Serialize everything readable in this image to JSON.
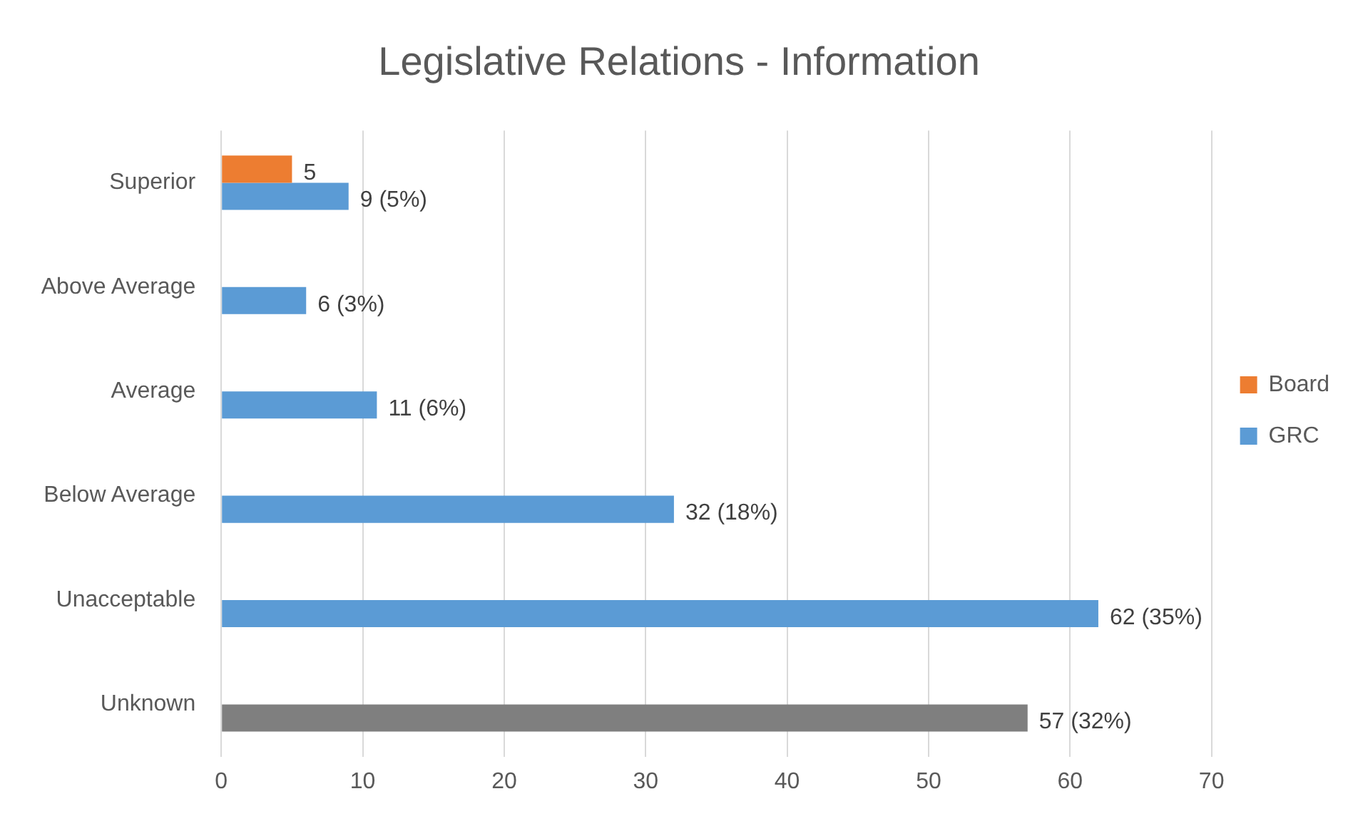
{
  "chart_data": {
    "type": "bar",
    "title": "Legislative Relations - Information",
    "orientation": "horizontal",
    "categories": [
      "Superior",
      "Above Average",
      "Average",
      "Below Average",
      "Unacceptable",
      "Unknown"
    ],
    "series": [
      {
        "name": "Board",
        "color": "#ed7d31",
        "values": [
          5,
          null,
          null,
          null,
          null,
          null
        ],
        "value_labels": [
          "5",
          null,
          null,
          null,
          null,
          null
        ]
      },
      {
        "name": "GRC",
        "color": "#5b9bd5",
        "colors": [
          "#5b9bd5",
          "#5b9bd5",
          "#5b9bd5",
          "#5b9bd5",
          "#5b9bd5",
          "#7f7f7f"
        ],
        "values": [
          9,
          6,
          11,
          32,
          62,
          57
        ],
        "value_labels": [
          "9 (5%)",
          "6 (3%)",
          "11 (6%)",
          "32 (18%)",
          "62 (35%)",
          "57 (32%)"
        ]
      }
    ],
    "xlim": [
      0,
      70
    ],
    "xticks": [
      0,
      10,
      20,
      30,
      40,
      50,
      60,
      70
    ],
    "grid": "x",
    "legend": "right"
  }
}
